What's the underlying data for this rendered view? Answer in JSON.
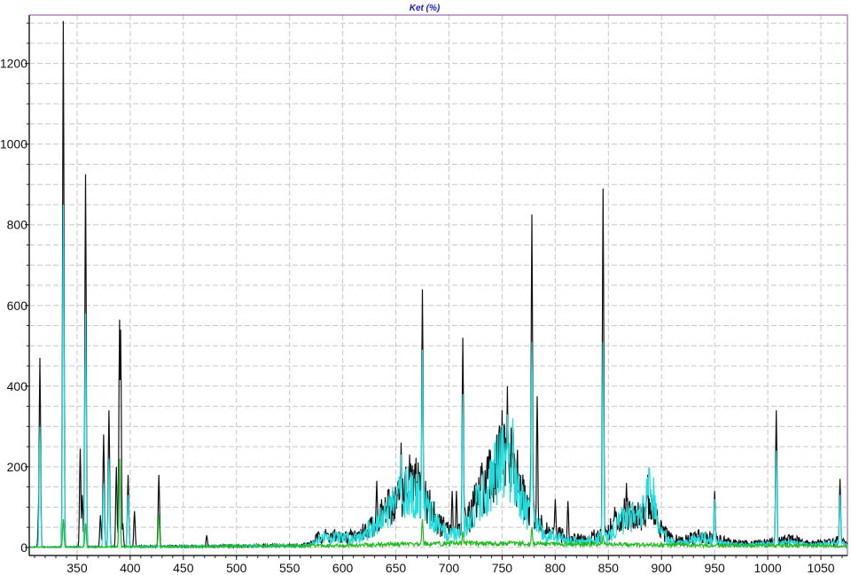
{
  "chart_data": {
    "type": "line",
    "title": "Ket (%)",
    "xlabel": "",
    "ylabel": "",
    "xlim": [
      305,
      1075
    ],
    "ylim": [
      -20,
      1320
    ],
    "x_ticks": [
      350,
      400,
      450,
      500,
      550,
      600,
      650,
      700,
      750,
      800,
      850,
      900,
      950,
      1000,
      1050
    ],
    "y_ticks": [
      0,
      200,
      400,
      600,
      800,
      1000,
      1200
    ],
    "grid": true,
    "legend": "none",
    "series": [
      {
        "color": "#111111",
        "baseline": [
          [
            305,
            0
          ],
          [
            560,
            5
          ],
          [
            570,
            10
          ],
          [
            580,
            30
          ],
          [
            590,
            28
          ],
          [
            600,
            25
          ],
          [
            610,
            28
          ],
          [
            620,
            40
          ],
          [
            630,
            60
          ],
          [
            640,
            90
          ],
          [
            650,
            115
          ],
          [
            660,
            140
          ],
          [
            670,
            150
          ],
          [
            680,
            110
          ],
          [
            690,
            60
          ],
          [
            700,
            40
          ],
          [
            710,
            50
          ],
          [
            720,
            80
          ],
          [
            730,
            140
          ],
          [
            740,
            170
          ],
          [
            750,
            220
          ],
          [
            760,
            200
          ],
          [
            770,
            120
          ],
          [
            780,
            80
          ],
          [
            790,
            40
          ],
          [
            800,
            35
          ],
          [
            810,
            25
          ],
          [
            820,
            20
          ],
          [
            830,
            20
          ],
          [
            840,
            30
          ],
          [
            850,
            40
          ],
          [
            860,
            70
          ],
          [
            870,
            90
          ],
          [
            880,
            80
          ],
          [
            890,
            100
          ],
          [
            900,
            40
          ],
          [
            910,
            20
          ],
          [
            920,
            15
          ],
          [
            930,
            25
          ],
          [
            940,
            30
          ],
          [
            950,
            20
          ],
          [
            960,
            15
          ],
          [
            970,
            12
          ],
          [
            980,
            10
          ],
          [
            990,
            12
          ],
          [
            1000,
            15
          ],
          [
            1010,
            15
          ],
          [
            1020,
            20
          ],
          [
            1030,
            15
          ],
          [
            1040,
            10
          ],
          [
            1050,
            12
          ],
          [
            1060,
            15
          ],
          [
            1070,
            18
          ],
          [
            1075,
            5
          ]
        ],
        "peaks": [
          [
            314,
            110
          ],
          [
            315,
            470
          ],
          [
            337,
            1305
          ],
          [
            353,
            245
          ],
          [
            355,
            130
          ],
          [
            358,
            925
          ],
          [
            372,
            80
          ],
          [
            375,
            280
          ],
          [
            380,
            340
          ],
          [
            387,
            200
          ],
          [
            390,
            565
          ],
          [
            391,
            540
          ],
          [
            393,
            60
          ],
          [
            398,
            180
          ],
          [
            404,
            90
          ],
          [
            427,
            180
          ],
          [
            472,
            30
          ],
          [
            632,
            165
          ],
          [
            655,
            260
          ],
          [
            663,
            230
          ],
          [
            675,
            640
          ],
          [
            703,
            140
          ],
          [
            707,
            140
          ],
          [
            713,
            520
          ],
          [
            736,
            200
          ],
          [
            745,
            280
          ],
          [
            750,
            340
          ],
          [
            755,
            400
          ],
          [
            760,
            300
          ],
          [
            778,
            825
          ],
          [
            783,
            375
          ],
          [
            800,
            120
          ],
          [
            812,
            115
          ],
          [
            845,
            890
          ],
          [
            856,
            100
          ],
          [
            867,
            160
          ],
          [
            887,
            180
          ],
          [
            950,
            140
          ],
          [
            1008,
            340
          ],
          [
            1068,
            170
          ]
        ]
      },
      {
        "color": "#22dddd",
        "baseline": [
          [
            305,
            0
          ],
          [
            560,
            4
          ],
          [
            570,
            8
          ],
          [
            580,
            25
          ],
          [
            590,
            24
          ],
          [
            600,
            22
          ],
          [
            610,
            25
          ],
          [
            620,
            35
          ],
          [
            630,
            55
          ],
          [
            640,
            80
          ],
          [
            650,
            110
          ],
          [
            660,
            135
          ],
          [
            670,
            140
          ],
          [
            680,
            100
          ],
          [
            690,
            50
          ],
          [
            700,
            30
          ],
          [
            710,
            40
          ],
          [
            720,
            70
          ],
          [
            730,
            130
          ],
          [
            740,
            160
          ],
          [
            750,
            210
          ],
          [
            760,
            180
          ],
          [
            770,
            100
          ],
          [
            780,
            70
          ],
          [
            790,
            30
          ],
          [
            800,
            28
          ],
          [
            810,
            18
          ],
          [
            820,
            15
          ],
          [
            830,
            15
          ],
          [
            840,
            22
          ],
          [
            850,
            30
          ],
          [
            860,
            60
          ],
          [
            870,
            80
          ],
          [
            880,
            70
          ],
          [
            890,
            150
          ],
          [
            900,
            30
          ],
          [
            910,
            15
          ],
          [
            920,
            10
          ],
          [
            930,
            20
          ],
          [
            940,
            25
          ],
          [
            950,
            15
          ],
          [
            960,
            10
          ],
          [
            970,
            8
          ],
          [
            980,
            6
          ],
          [
            990,
            8
          ],
          [
            1000,
            10
          ],
          [
            1010,
            10
          ],
          [
            1020,
            14
          ],
          [
            1030,
            10
          ],
          [
            1040,
            6
          ],
          [
            1050,
            8
          ],
          [
            1060,
            10
          ],
          [
            1070,
            12
          ],
          [
            1075,
            3
          ]
        ],
        "peaks": [
          [
            315,
            300
          ],
          [
            337,
            850
          ],
          [
            358,
            580
          ],
          [
            375,
            160
          ],
          [
            380,
            220
          ],
          [
            390,
            200
          ],
          [
            398,
            130
          ],
          [
            655,
            230
          ],
          [
            675,
            490
          ],
          [
            713,
            380
          ],
          [
            755,
            330
          ],
          [
            760,
            320
          ],
          [
            778,
            510
          ],
          [
            845,
            510
          ],
          [
            887,
            175
          ],
          [
            950,
            120
          ],
          [
            1008,
            240
          ],
          [
            1068,
            130
          ]
        ]
      },
      {
        "color": "#22bb22",
        "baseline": [
          [
            305,
            0
          ],
          [
            570,
            4
          ],
          [
            600,
            5
          ],
          [
            650,
            8
          ],
          [
            700,
            10
          ],
          [
            750,
            10
          ],
          [
            800,
            8
          ],
          [
            850,
            8
          ],
          [
            900,
            6
          ],
          [
            950,
            5
          ],
          [
            1000,
            5
          ],
          [
            1050,
            4
          ],
          [
            1075,
            2
          ]
        ],
        "peaks": [
          [
            337,
            70
          ],
          [
            358,
            60
          ],
          [
            390,
            220
          ],
          [
            427,
            80
          ],
          [
            675,
            70
          ],
          [
            713,
            40
          ],
          [
            778,
            50
          ],
          [
            845,
            30
          ]
        ]
      }
    ]
  }
}
